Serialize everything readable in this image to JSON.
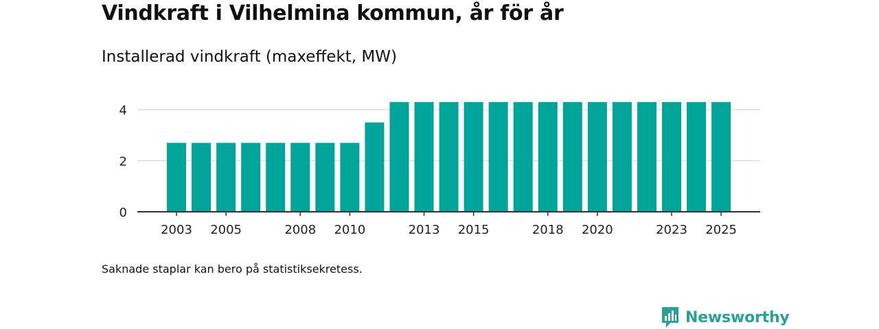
{
  "title": "Vindkraft i Vilhelmina kommun, år för år",
  "subtitle": "Installerad vindkraft (maxeffekt, MW)",
  "footnote": "Saknade staplar kan bero på statistiksekretess.",
  "brand": {
    "name": "Newsworthy",
    "icon": "newsworthy-logo-icon"
  },
  "colors": {
    "bar": "#00A59A",
    "grid": "#dddddd",
    "axis": "#333333"
  },
  "chart_data": {
    "type": "bar",
    "title": "Installerad vindkraft (maxeffekt, MW)",
    "xlabel": "",
    "ylabel": "",
    "ylim": [
      0,
      4.6
    ],
    "yticks": [
      0,
      2,
      4
    ],
    "grid": true,
    "categories": [
      "2003",
      "2004",
      "2005",
      "2006",
      "2007",
      "2008",
      "2009",
      "2010",
      "2011",
      "2012",
      "2013",
      "2014",
      "2015",
      "2016",
      "2017",
      "2018",
      "2019",
      "2020",
      "2021",
      "2022",
      "2023",
      "2024",
      "2025"
    ],
    "x_tick_labels": [
      "2003",
      "2005",
      "2008",
      "2010",
      "2013",
      "2015",
      "2018",
      "2020",
      "2023",
      "2025"
    ],
    "values": [
      2.7,
      2.7,
      2.7,
      2.7,
      2.7,
      2.7,
      2.7,
      2.7,
      3.5,
      4.3,
      4.3,
      4.3,
      4.3,
      4.3,
      4.3,
      4.3,
      4.3,
      4.3,
      4.3,
      4.3,
      4.3,
      4.3,
      4.3
    ]
  }
}
